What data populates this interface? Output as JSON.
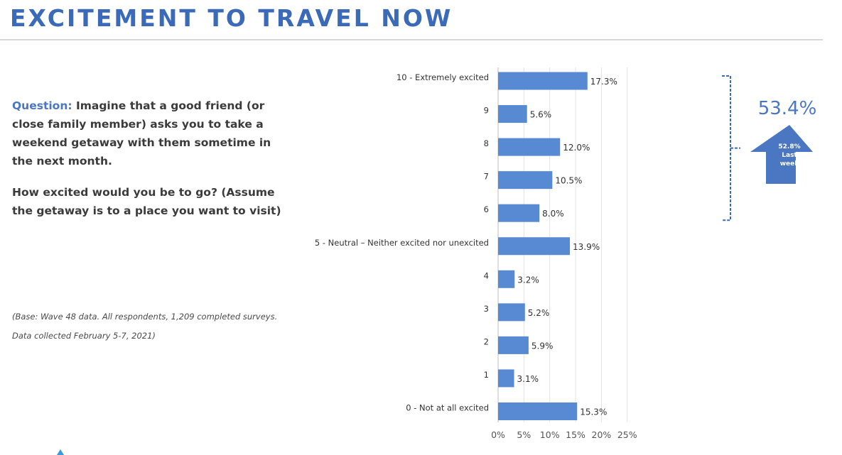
{
  "title": "EXCITEMENT TO TRAVEL NOW",
  "question": {
    "label": "Question:",
    "text": " Imagine that a good friend (or close family member) asks you to take a weekend getaway with them sometime in the next month.",
    "followup": "How excited would you be to go? (Assume the getaway is to a place you want to visit)"
  },
  "base_note": "(Base: Wave 48 data. All respondents, 1,209 completed surveys. Data collected February 5-7, 2021)",
  "summary": {
    "value": "53.4%",
    "last_week_value": "52.8%",
    "last_week_line1": "Last",
    "last_week_line2": "week",
    "accent_color": "#4a76c2"
  },
  "chart_data": {
    "type": "bar",
    "orientation": "horizontal",
    "categories": [
      "10 - Extremely excited",
      "9",
      "8",
      "7",
      "6",
      "5 - Neutral – Neither excited nor unexcited",
      "4",
      "3",
      "2",
      "1",
      "0 - Not at all excited"
    ],
    "values": [
      17.3,
      5.6,
      12.0,
      10.5,
      8.0,
      13.9,
      3.2,
      5.2,
      5.9,
      3.1,
      15.3
    ],
    "value_labels": [
      "17.3%",
      "5.6%",
      "12.0%",
      "10.5%",
      "8.0%",
      "13.9%",
      "3.2%",
      "5.2%",
      "5.9%",
      "3.1%",
      "15.3%"
    ],
    "x_ticks": [
      "0%",
      "5%",
      "10%",
      "15%",
      "20%",
      "25%"
    ],
    "xlim": [
      0,
      25
    ],
    "grid": true,
    "bar_color": "#588ad4",
    "bracket_categories": [
      "10 - Extremely excited",
      "9",
      "8",
      "7",
      "6"
    ]
  }
}
